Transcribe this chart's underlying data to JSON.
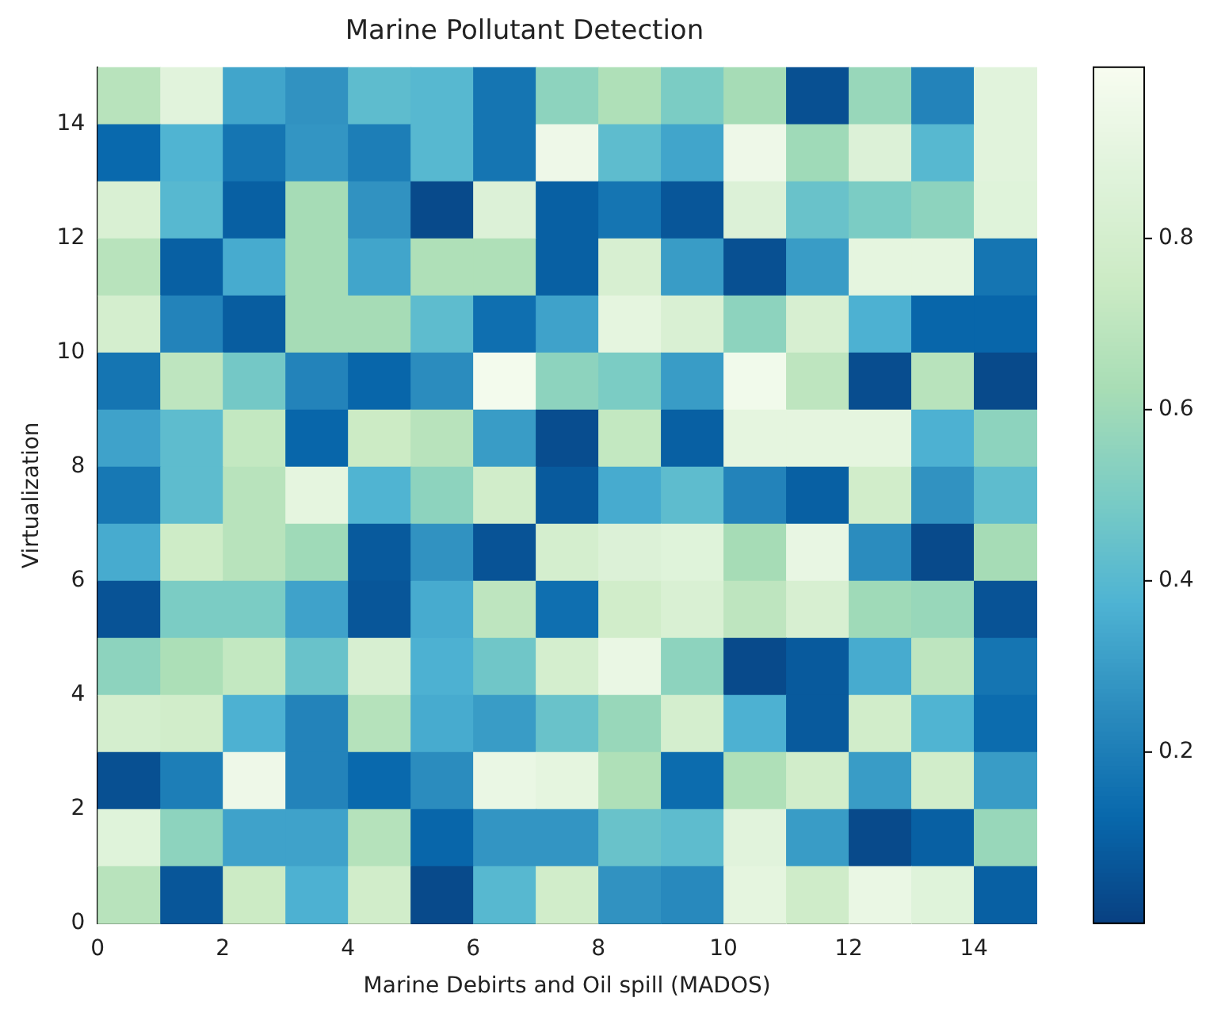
{
  "chart_data": {
    "type": "heatmap",
    "title": "Marine Pollutant Detection",
    "xlabel": "Marine Debirts and Oil spill (MADOS)",
    "ylabel": "Virtualization",
    "x": [
      0.5,
      1.5,
      2.5,
      3.5,
      4.5,
      5.5,
      6.5,
      7.5,
      8.5,
      9.5,
      10.5,
      11.5,
      12.5,
      13.5,
      14.5
    ],
    "y": [
      14.5,
      13.5,
      12.5,
      11.5,
      10.5,
      9.5,
      8.5,
      7.5,
      6.5,
      5.5,
      4.5,
      3.5,
      2.5,
      1.5,
      0.5
    ],
    "xlim": [
      0,
      15
    ],
    "xticks": [
      0,
      2,
      4,
      6,
      8,
      10,
      12,
      14
    ],
    "ylim": [
      0,
      15
    ],
    "yticks": [
      0,
      2,
      4,
      6,
      8,
      10,
      12,
      14
    ],
    "clim": [
      0,
      1
    ],
    "cticks": [
      0.2,
      0.4,
      0.6,
      0.8
    ],
    "cells": [
      [
        0.68,
        0.88,
        0.33,
        0.27,
        0.42,
        0.4,
        0.17,
        0.55,
        0.65,
        0.5,
        0.62,
        0.05,
        0.58,
        0.22,
        0.88
      ],
      [
        0.13,
        0.38,
        0.17,
        0.28,
        0.2,
        0.4,
        0.17,
        0.95,
        0.42,
        0.33,
        0.95,
        0.6,
        0.85,
        0.4,
        0.88
      ],
      [
        0.83,
        0.4,
        0.1,
        0.62,
        0.27,
        0.03,
        0.85,
        0.1,
        0.17,
        0.07,
        0.85,
        0.45,
        0.5,
        0.55,
        0.87
      ],
      [
        0.68,
        0.1,
        0.35,
        0.62,
        0.33,
        0.65,
        0.65,
        0.1,
        0.82,
        0.3,
        0.05,
        0.3,
        0.9,
        0.9,
        0.17
      ],
      [
        0.8,
        0.22,
        0.09,
        0.62,
        0.62,
        0.42,
        0.15,
        0.32,
        0.9,
        0.83,
        0.55,
        0.82,
        0.37,
        0.12,
        0.12
      ],
      [
        0.17,
        0.7,
        0.48,
        0.22,
        0.12,
        0.25,
        0.98,
        0.55,
        0.5,
        0.3,
        0.97,
        0.7,
        0.04,
        0.68,
        0.03
      ],
      [
        0.32,
        0.42,
        0.72,
        0.12,
        0.75,
        0.68,
        0.3,
        0.04,
        0.72,
        0.1,
        0.9,
        0.9,
        0.9,
        0.37,
        0.55
      ],
      [
        0.18,
        0.42,
        0.68,
        0.9,
        0.38,
        0.55,
        0.78,
        0.08,
        0.35,
        0.42,
        0.22,
        0.1,
        0.78,
        0.27,
        0.42
      ],
      [
        0.35,
        0.76,
        0.68,
        0.6,
        0.08,
        0.27,
        0.06,
        0.8,
        0.85,
        0.87,
        0.62,
        0.92,
        0.25,
        0.03,
        0.62
      ],
      [
        0.06,
        0.5,
        0.5,
        0.32,
        0.07,
        0.35,
        0.7,
        0.15,
        0.78,
        0.83,
        0.7,
        0.82,
        0.6,
        0.58,
        0.06
      ],
      [
        0.55,
        0.64,
        0.72,
        0.45,
        0.82,
        0.37,
        0.47,
        0.8,
        0.93,
        0.55,
        0.03,
        0.08,
        0.35,
        0.7,
        0.17
      ],
      [
        0.8,
        0.78,
        0.37,
        0.22,
        0.67,
        0.35,
        0.3,
        0.45,
        0.58,
        0.8,
        0.37,
        0.08,
        0.78,
        0.38,
        0.14
      ],
      [
        0.05,
        0.2,
        0.95,
        0.22,
        0.13,
        0.25,
        0.93,
        0.9,
        0.65,
        0.14,
        0.65,
        0.78,
        0.3,
        0.78,
        0.3
      ],
      [
        0.87,
        0.55,
        0.32,
        0.32,
        0.67,
        0.12,
        0.28,
        0.28,
        0.45,
        0.42,
        0.88,
        0.3,
        0.03,
        0.1,
        0.58
      ],
      [
        0.68,
        0.07,
        0.75,
        0.37,
        0.78,
        0.03,
        0.4,
        0.78,
        0.27,
        0.24,
        0.9,
        0.77,
        0.93,
        0.87,
        0.1
      ]
    ]
  }
}
